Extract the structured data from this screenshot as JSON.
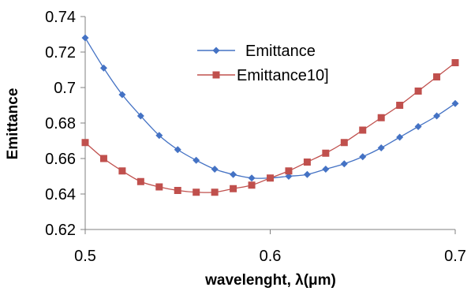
{
  "chart_data": {
    "type": "line",
    "xlabel": "wavelenght, λ(μm)",
    "ylabel": "Emittance",
    "xlim": [
      0.5,
      0.7
    ],
    "ylim": [
      0.62,
      0.74
    ],
    "xticks": [
      "0.5",
      "0.6",
      "0.7"
    ],
    "yticks": [
      "0.62",
      "0.64",
      "0.66",
      "0.68",
      "0.7",
      "0.72",
      "0.74"
    ],
    "grid": false,
    "legend_position": "top-center",
    "x": [
      0.5,
      0.51,
      0.52,
      0.53,
      0.54,
      0.55,
      0.56,
      0.57,
      0.58,
      0.59,
      0.6,
      0.61,
      0.62,
      0.63,
      0.64,
      0.65,
      0.66,
      0.67,
      0.68,
      0.69,
      0.7
    ],
    "series": [
      {
        "name": "Emittance",
        "color": "#4472C4",
        "marker": "diamond",
        "values": [
          0.728,
          0.711,
          0.696,
          0.684,
          0.673,
          0.665,
          0.659,
          0.654,
          0.651,
          0.649,
          0.649,
          0.65,
          0.651,
          0.654,
          0.657,
          0.661,
          0.666,
          0.672,
          0.678,
          0.684,
          0.691
        ]
      },
      {
        "name": "Emittance10]",
        "color": "#C0504D",
        "marker": "square",
        "values": [
          0.669,
          0.66,
          0.653,
          0.647,
          0.644,
          0.642,
          0.641,
          0.641,
          0.643,
          0.645,
          0.649,
          0.653,
          0.658,
          0.663,
          0.669,
          0.676,
          0.683,
          0.69,
          0.698,
          0.706,
          0.714
        ]
      }
    ]
  }
}
